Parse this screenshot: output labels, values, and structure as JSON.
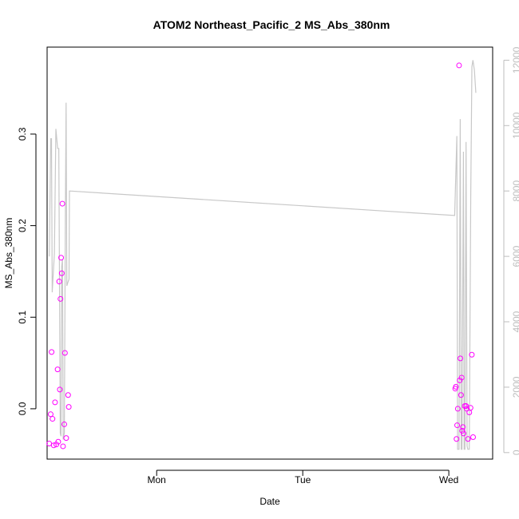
{
  "chart_data": {
    "type": "scatter",
    "title": "ATOM2 Northeast_Pacific_2 MS_Abs_380nm",
    "xlabel": "Date",
    "ylabel": "MS_Abs_380nm",
    "x_unit": "days since Sunday 00:00",
    "xlim": [
      0.25,
      3.3
    ],
    "ylim": [
      -0.055,
      0.395
    ],
    "y_ticks": [
      0.0,
      0.1,
      0.2,
      0.3
    ],
    "y_tick_labels": [
      "0.0",
      "0.1",
      "0.2",
      "0.3"
    ],
    "x_ticks": [
      1,
      2,
      3
    ],
    "x_tick_labels": [
      "Mon",
      "Tue",
      "Wed"
    ],
    "y2lim": [
      -200,
      12400
    ],
    "y2_ticks": [
      0,
      2000,
      4000,
      6000,
      8000,
      10000,
      12000
    ],
    "y2_tick_labels": [
      "0",
      "2000",
      "4000",
      "6000",
      "8000",
      "10000",
      "12000"
    ],
    "colors": {
      "points": "#ff00ff",
      "line": "#c8c8c8",
      "right_axis": "#bdbdbd"
    },
    "grid": false,
    "series": [
      {
        "values": [
          [
            0.2642,
            -0.038
          ],
          [
            0.2743,
            -0.006
          ],
          [
            0.2808,
            0.062
          ],
          [
            0.2869,
            -0.011
          ],
          [
            0.2956,
            -0.04
          ],
          [
            0.3043,
            0.007
          ],
          [
            0.3131,
            -0.039
          ],
          [
            0.3218,
            0.043
          ],
          [
            0.3262,
            -0.036
          ],
          [
            0.3327,
            0.139
          ],
          [
            0.3371,
            0.021
          ],
          [
            0.3414,
            0.12
          ],
          [
            0.3458,
            0.165
          ],
          [
            0.3502,
            0.148
          ],
          [
            0.3545,
            0.224
          ],
          [
            0.3589,
            -0.041
          ],
          [
            0.3676,
            -0.017
          ],
          [
            0.372,
            0.061
          ],
          [
            0.3807,
            -0.032
          ],
          [
            0.3938,
            0.015
          ],
          [
            0.3982,
            0.002
          ],
          [
            3.0439,
            0.022
          ],
          [
            3.0483,
            0.024
          ],
          [
            3.0526,
            -0.033
          ],
          [
            3.057,
            -0.018
          ],
          [
            3.0614,
            0.0
          ],
          [
            3.0701,
            0.375
          ],
          [
            3.0745,
            0.031
          ],
          [
            3.0788,
            0.055
          ],
          [
            3.0832,
            0.015
          ],
          [
            3.0876,
            0.034
          ],
          [
            3.0919,
            -0.024
          ],
          [
            3.0963,
            -0.02
          ],
          [
            3.1007,
            -0.027
          ],
          [
            3.1094,
            0.003
          ],
          [
            3.1181,
            0.003
          ],
          [
            3.1225,
            0.0
          ],
          [
            3.1312,
            -0.033
          ],
          [
            3.14,
            -0.004
          ],
          [
            3.1487,
            0.001
          ],
          [
            3.1574,
            0.059
          ],
          [
            3.1661,
            -0.031
          ]
        ]
      },
      {
        "axis": "right",
        "values": [
          [
            0.265,
            6000
          ],
          [
            0.275,
            9600
          ],
          [
            0.28,
            9600
          ],
          [
            0.285,
            4900
          ],
          [
            0.3,
            6100
          ],
          [
            0.31,
            9900
          ],
          [
            0.322,
            9300
          ],
          [
            0.33,
            9300
          ],
          [
            0.34,
            600
          ],
          [
            0.345,
            500
          ],
          [
            0.35,
            5700
          ],
          [
            0.355,
            5900
          ],
          [
            0.36,
            400
          ],
          [
            0.368,
            600
          ],
          [
            0.375,
            7300
          ],
          [
            0.38,
            10700
          ],
          [
            0.385,
            5100
          ],
          [
            0.392,
            5200
          ],
          [
            0.4,
            5300
          ],
          [
            0.403,
            8000
          ],
          [
            0.405,
            8000
          ],
          [
            3.04,
            7250
          ],
          [
            3.055,
            9680
          ],
          [
            3.06,
            100
          ],
          [
            3.07,
            100
          ],
          [
            3.078,
            10200
          ],
          [
            3.085,
            100
          ],
          [
            3.09,
            100
          ],
          [
            3.1,
            9200
          ],
          [
            3.105,
            100
          ],
          [
            3.11,
            100
          ],
          [
            3.118,
            9500
          ],
          [
            3.125,
            200
          ],
          [
            3.13,
            100
          ],
          [
            3.14,
            100
          ],
          [
            3.15,
            7800
          ],
          [
            3.158,
            11800
          ],
          [
            3.165,
            12000
          ],
          [
            3.175,
            11700
          ],
          [
            3.185,
            11000
          ]
        ]
      }
    ]
  }
}
